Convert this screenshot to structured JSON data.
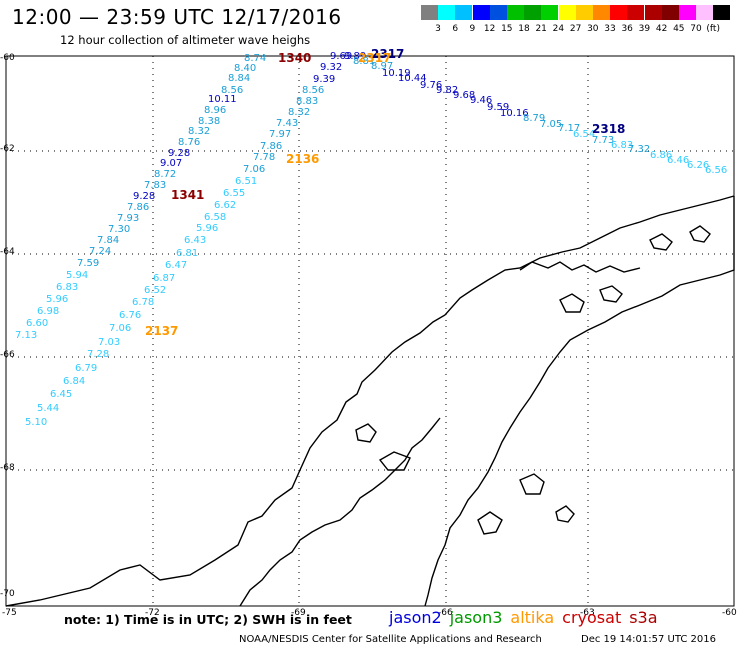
{
  "header": {
    "title": "12:00 — 23:59 UTC 12/17/2016",
    "subtitle": "12 hour collection of altimeter wave heighs"
  },
  "colorbar": {
    "colors": [
      "#808080",
      "#00ffff",
      "#00c0ff",
      "#0000ff",
      "#0050e0",
      "#00c000",
      "#00a000",
      "#00d000",
      "#ffff00",
      "#ffcc00",
      "#ff8800",
      "#ff0000",
      "#cc0000",
      "#aa0000",
      "#800000",
      "#ff00ff",
      "#ffc0ff",
      "#000000"
    ],
    "labels": [
      "3",
      "6",
      "9",
      "12",
      "15",
      "18",
      "21",
      "24",
      "27",
      "30",
      "33",
      "36",
      "39",
      "42",
      "45",
      "70",
      "(ft)"
    ]
  },
  "map": {
    "lat_labels": [
      "-60",
      "-62",
      "-64",
      "-66",
      "-68",
      "-70"
    ],
    "lon_labels": [
      "-75",
      "-72",
      "-69",
      "-66",
      "-63",
      "-60"
    ],
    "track_points": [
      {
        "v": "8.74",
        "c": "#1a9fd6"
      },
      {
        "v": "8.40",
        "c": "#1a9fd6"
      },
      {
        "v": "8.84",
        "c": "#1a9fd6"
      },
      {
        "v": "8.56",
        "c": "#1a9fd6"
      },
      {
        "v": "10.11",
        "c": "#0000c0"
      },
      {
        "v": "8.96",
        "c": "#1a9fd6"
      },
      {
        "v": "8.38",
        "c": "#1a9fd6"
      },
      {
        "v": "8.32",
        "c": "#1a9fd6"
      },
      {
        "v": "8.76",
        "c": "#1a9fd6"
      },
      {
        "v": "9.28",
        "c": "#0000c0"
      },
      {
        "v": "9.07",
        "c": "#0000c0"
      },
      {
        "v": "8.72",
        "c": "#1a9fd6"
      },
      {
        "v": "7.83",
        "c": "#1a9fd6"
      },
      {
        "v": "9.28",
        "c": "#0000c0"
      },
      {
        "v": "7.86",
        "c": "#1a9fd6"
      },
      {
        "v": "7.93",
        "c": "#1a9fd6"
      },
      {
        "v": "7.30",
        "c": "#1a9fd6"
      },
      {
        "v": "7.84",
        "c": "#1a9fd6"
      },
      {
        "v": "7.24",
        "c": "#1a9fd6"
      },
      {
        "v": "7.59",
        "c": "#1a9fd6"
      },
      {
        "v": "5.94",
        "c": "#33ccff"
      },
      {
        "v": "6.83",
        "c": "#33ccff"
      },
      {
        "v": "5.96",
        "c": "#33ccff"
      },
      {
        "v": "6.98",
        "c": "#33ccff"
      },
      {
        "v": "6.60",
        "c": "#33ccff"
      },
      {
        "v": "7.13",
        "c": "#33ccff"
      },
      {
        "v": "9.32",
        "c": "#0000c0"
      },
      {
        "v": "9.39",
        "c": "#0000c0"
      },
      {
        "v": "8.56",
        "c": "#1a9fd6"
      },
      {
        "v": "8.83",
        "c": "#1a9fd6"
      },
      {
        "v": "8.32",
        "c": "#1a9fd6"
      },
      {
        "v": "7.43",
        "c": "#1a9fd6"
      },
      {
        "v": "7.97",
        "c": "#1a9fd6"
      },
      {
        "v": "7.86",
        "c": "#1a9fd6"
      },
      {
        "v": "7.78",
        "c": "#1a9fd6"
      },
      {
        "v": "7.06",
        "c": "#1a9fd6"
      },
      {
        "v": "6.51",
        "c": "#33ccff"
      },
      {
        "v": "6.55",
        "c": "#33ccff"
      },
      {
        "v": "6.62",
        "c": "#33ccff"
      },
      {
        "v": "6.58",
        "c": "#33ccff"
      },
      {
        "v": "5.96",
        "c": "#33ccff"
      },
      {
        "v": "6.43",
        "c": "#33ccff"
      },
      {
        "v": "6.81",
        "c": "#33ccff"
      },
      {
        "v": "6.47",
        "c": "#33ccff"
      },
      {
        "v": "6.87",
        "c": "#33ccff"
      },
      {
        "v": "6.52",
        "c": "#33ccff"
      },
      {
        "v": "6.78",
        "c": "#33ccff"
      },
      {
        "v": "6.76",
        "c": "#33ccff"
      },
      {
        "v": "7.06",
        "c": "#33ccff"
      },
      {
        "v": "7.03",
        "c": "#33ccff"
      },
      {
        "v": "7.28",
        "c": "#33ccff"
      },
      {
        "v": "6.79",
        "c": "#33ccff"
      },
      {
        "v": "6.84",
        "c": "#33ccff"
      },
      {
        "v": "6.45",
        "c": "#33ccff"
      },
      {
        "v": "5.44",
        "c": "#33ccff"
      },
      {
        "v": "5.10",
        "c": "#33ccff"
      },
      {
        "v": "9.69",
        "c": "#0000c0"
      },
      {
        "v": "9.89",
        "c": "#0000c0"
      },
      {
        "v": "8.81",
        "c": "#1a9fd6"
      },
      {
        "v": "8.97",
        "c": "#1a9fd6"
      },
      {
        "v": "10.19",
        "c": "#0000c0"
      },
      {
        "v": "10.44",
        "c": "#0000c0"
      },
      {
        "v": "9.76",
        "c": "#0000c0"
      },
      {
        "v": "9.82",
        "c": "#0000c0"
      },
      {
        "v": "9.68",
        "c": "#0000c0"
      },
      {
        "v": "9.46",
        "c": "#0000c0"
      },
      {
        "v": "9.59",
        "c": "#0000c0"
      },
      {
        "v": "10.16",
        "c": "#0000c0"
      },
      {
        "v": "8.79",
        "c": "#1a9fd6"
      },
      {
        "v": "7.05",
        "c": "#1a9fd6"
      },
      {
        "v": "7.17",
        "c": "#1a9fd6"
      },
      {
        "v": "6.54",
        "c": "#33ccff"
      },
      {
        "v": "7.73",
        "c": "#1a9fd6"
      },
      {
        "v": "6.83",
        "c": "#33ccff"
      },
      {
        "v": "7.32",
        "c": "#1a9fd6"
      },
      {
        "v": "6.86",
        "c": "#33ccff"
      },
      {
        "v": "6.46",
        "c": "#33ccff"
      },
      {
        "v": "6.26",
        "c": "#33ccff"
      },
      {
        "v": "6.56",
        "c": "#33ccff"
      }
    ],
    "time_labels": [
      {
        "v": "1340",
        "c": "#8b0000"
      },
      {
        "v": "1341",
        "c": "#8b0000"
      },
      {
        "v": "2136",
        "c": "#ff9900"
      },
      {
        "v": "2137",
        "c": "#ff9900"
      },
      {
        "v": "2317",
        "c": "#000080"
      },
      {
        "v": "2318",
        "c": "#000080"
      },
      {
        "v": "2317",
        "c": "#ff9900"
      }
    ]
  },
  "footer": {
    "note": "note: 1) Time is in UTC; 2) SWH is in feet",
    "legend": [
      {
        "name": "jason2",
        "color": "#0000dd"
      },
      {
        "name": "jason3",
        "color": "#009900"
      },
      {
        "name": "altika",
        "color": "#ff9900"
      },
      {
        "name": "cryosat",
        "color": "#cc0000"
      },
      {
        "name": "s3a",
        "color": "#aa0000"
      }
    ],
    "credit": "NOAA/NESDIS Center for Satellite Applications and Research",
    "timestamp": "Dec 19 14:01:57 UTC 2016"
  }
}
